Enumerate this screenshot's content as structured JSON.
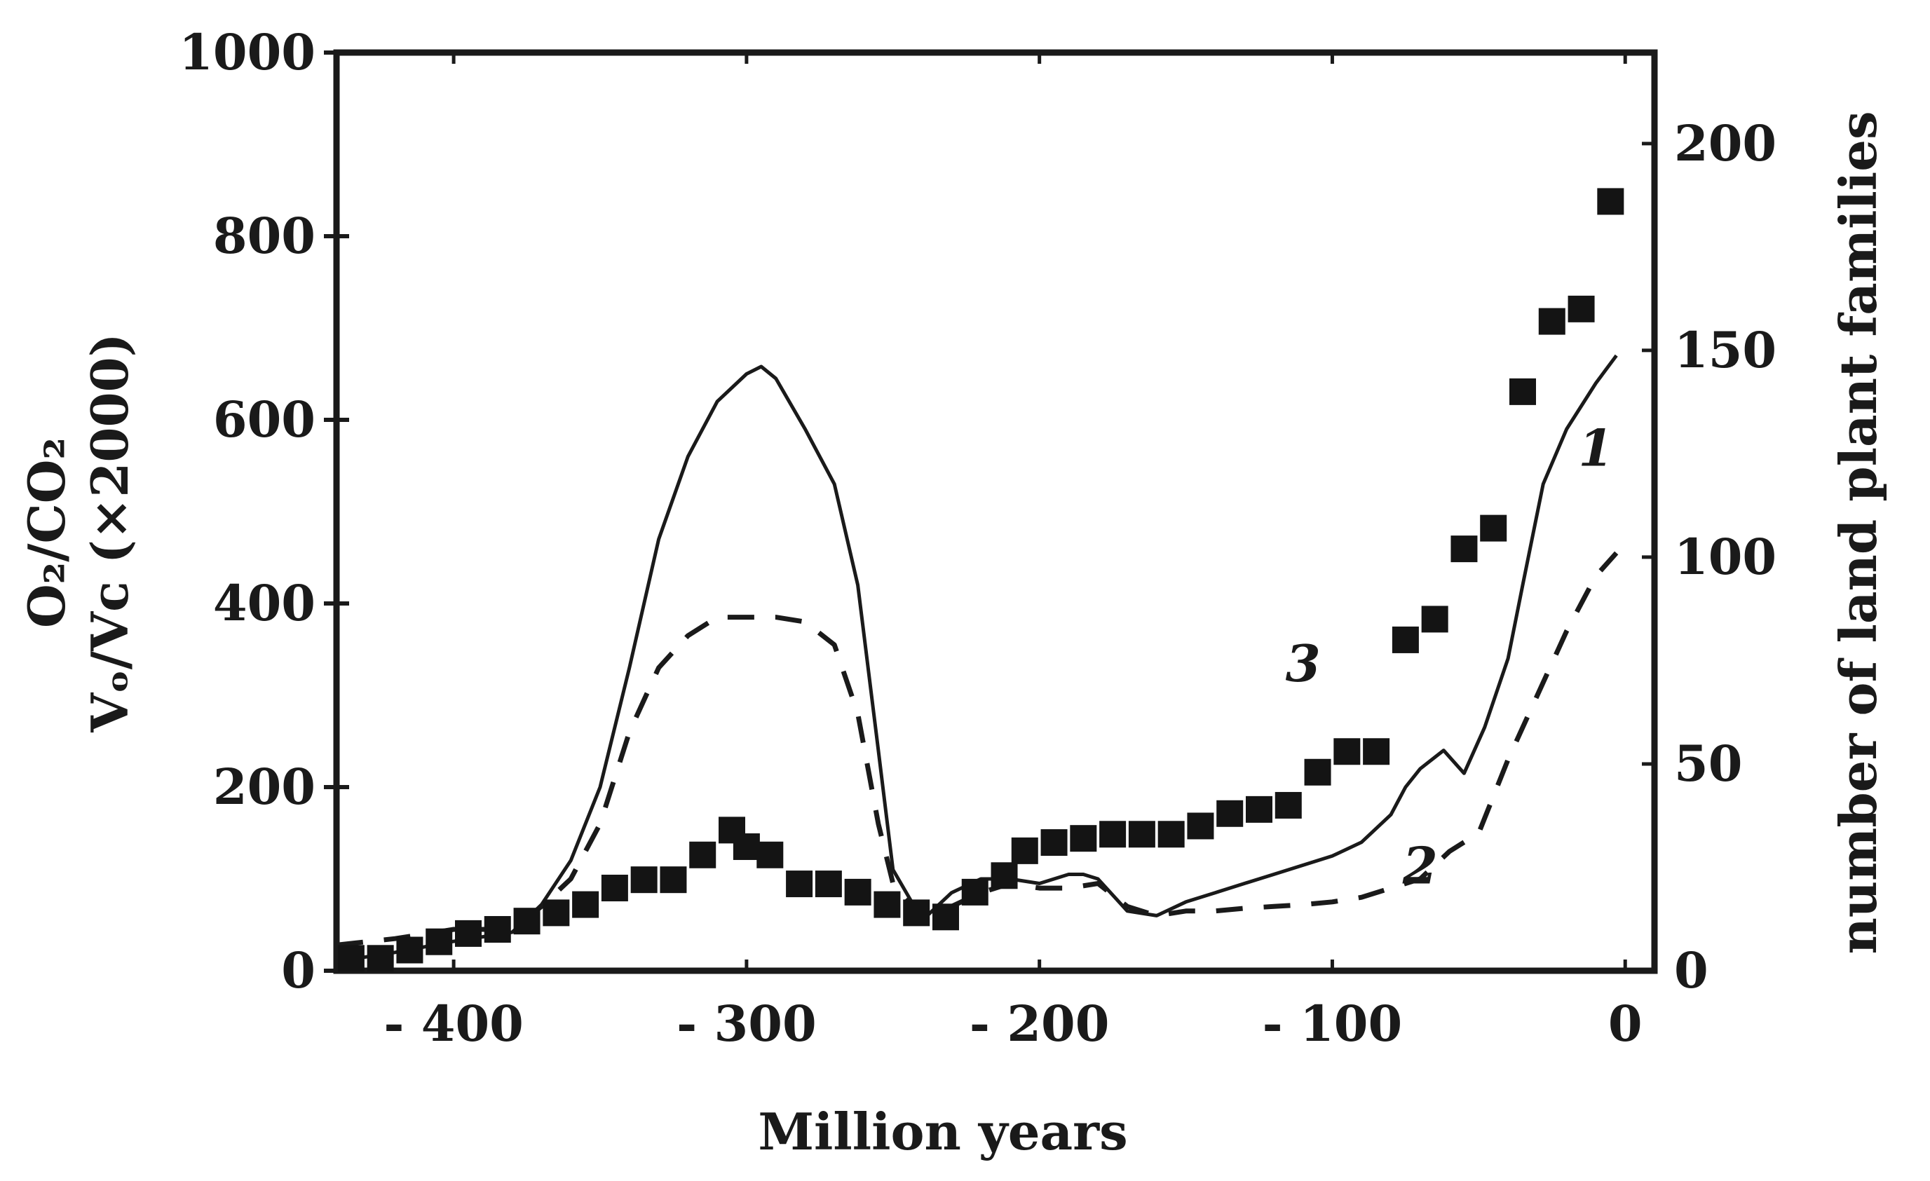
{
  "chart_data": {
    "type": "line",
    "xlabel": "Million years",
    "ylabel_left_line1": "O₂/CO₂",
    "ylabel_left_line2": "Vₒ/Vᴄ (×2000)",
    "ylabel_right": "number of land plant families",
    "xlim": [
      -440,
      10
    ],
    "ylim_left": [
      0,
      1000
    ],
    "ylim_right": [
      0,
      222
    ],
    "x_ticks": [
      -400,
      -300,
      -200,
      -100,
      0
    ],
    "x_tick_labels": [
      "- 400",
      "- 300",
      "- 200",
      "- 100",
      "0"
    ],
    "y_left_ticks": [
      0,
      200,
      400,
      600,
      800,
      1000
    ],
    "y_left_tick_labels": [
      "0",
      "200",
      "400",
      "600",
      "800",
      "1000"
    ],
    "y_right_ticks": [
      0,
      50,
      100,
      150,
      200
    ],
    "y_right_tick_labels": [
      "0",
      "50",
      "100",
      "150",
      "200"
    ],
    "series": [
      {
        "name": "1",
        "label": "1",
        "axis": "left",
        "style": "solid",
        "x": [
          -440,
          -420,
          -400,
          -380,
          -370,
          -360,
          -350,
          -340,
          -330,
          -320,
          -310,
          -300,
          -295,
          -290,
          -280,
          -270,
          -262,
          -255,
          -250,
          -240,
          -230,
          -220,
          -210,
          -200,
          -190,
          -185,
          -180,
          -170,
          -160,
          -150,
          -140,
          -130,
          -120,
          -100,
          -90,
          -80,
          -75,
          -70,
          -62,
          -55,
          -48,
          -40,
          -35,
          -28,
          -20,
          -10,
          -3
        ],
        "values": [
          10,
          20,
          32,
          42,
          72,
          120,
          200,
          330,
          470,
          560,
          620,
          650,
          658,
          645,
          590,
          530,
          420,
          240,
          110,
          55,
          85,
          100,
          100,
          95,
          105,
          105,
          100,
          65,
          60,
          75,
          85,
          95,
          105,
          125,
          140,
          170,
          200,
          220,
          240,
          215,
          265,
          340,
          420,
          530,
          590,
          640,
          670
        ],
        "label_at": [
          -10,
          550
        ]
      },
      {
        "name": "2",
        "label": "2",
        "axis": "left",
        "style": "dashed",
        "x": [
          -440,
          -420,
          -400,
          -380,
          -370,
          -360,
          -350,
          -340,
          -330,
          -320,
          -310,
          -300,
          -290,
          -280,
          -270,
          -262,
          -255,
          -250,
          -240,
          -230,
          -220,
          -210,
          -200,
          -190,
          -180,
          -170,
          -160,
          -150,
          -140,
          -130,
          -120,
          -110,
          -100,
          -90,
          -80,
          -70,
          -60,
          -50,
          -40,
          -30,
          -20,
          -10,
          -3
        ],
        "values": [
          28,
          35,
          45,
          45,
          70,
          100,
          160,
          260,
          330,
          365,
          385,
          385,
          385,
          380,
          355,
          280,
          160,
          95,
          60,
          70,
          85,
          95,
          90,
          90,
          95,
          70,
          60,
          65,
          65,
          68,
          70,
          72,
          75,
          80,
          90,
          100,
          130,
          150,
          230,
          300,
          370,
          430,
          455
        ],
        "label_at": [
          -70,
          95
        ]
      },
      {
        "name": "3",
        "label": "3",
        "axis": "right",
        "style": "markers",
        "x": [
          -435,
          -425,
          -415,
          -405,
          -395,
          -385,
          -375,
          -365,
          -355,
          -345,
          -335,
          -325,
          -315,
          -305,
          -300,
          -292,
          -282,
          -272,
          -262,
          -252,
          -242,
          -232,
          -222,
          -212,
          -205,
          -195,
          -185,
          -175,
          -165,
          -155,
          -145,
          -135,
          -125,
          -115,
          -105,
          -95,
          -85,
          -75,
          -65,
          -55,
          -45,
          -35,
          -25,
          -15,
          -5
        ],
        "values": [
          3,
          3,
          5,
          7,
          9,
          10,
          12,
          14,
          16,
          20,
          22,
          22,
          28,
          34,
          30,
          28,
          21,
          21,
          19,
          16,
          14,
          13,
          19,
          23,
          29,
          31,
          32,
          33,
          33,
          33,
          35,
          38,
          39,
          40,
          48,
          53,
          53,
          80,
          85,
          102,
          107,
          140,
          157,
          160,
          186
        ],
        "label_at": [
          -110,
          70
        ]
      }
    ]
  }
}
